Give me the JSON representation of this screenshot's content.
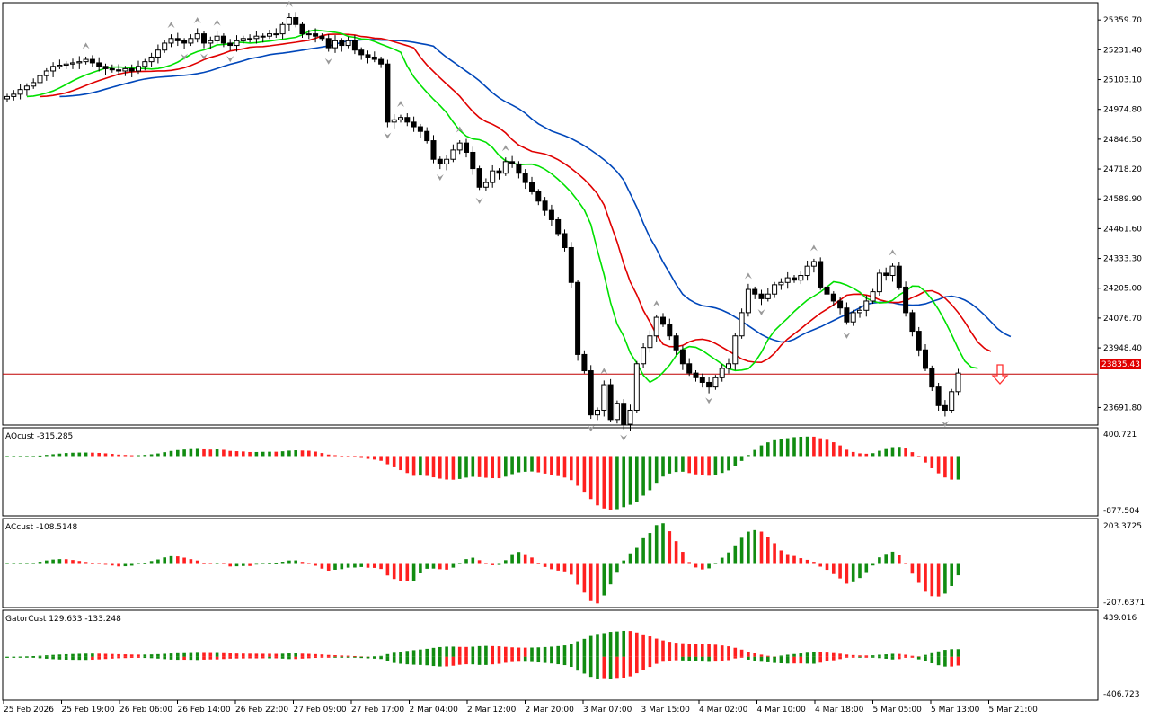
{
  "colors": {
    "background": "#ffffff",
    "grid_border": "#000000",
    "candle_bull": "#ffffff",
    "candle_bear": "#000000",
    "jaw": "#0047ba",
    "teeth": "#e00000",
    "lips": "#00e000",
    "hist_up": "#118c11",
    "hist_down": "#ff2020",
    "price_line": "#c00000",
    "price_tag_bg": "#e00000",
    "price_tag_text": "#ffffff",
    "fractal": "#999999",
    "signal_arrow": "#ff3030"
  },
  "signal": {
    "icon": "down-arrow-outline",
    "direction": "sell"
  },
  "chart_data": [
    {
      "type": "candlestick",
      "title": "",
      "current_price": "23835.43",
      "price_ticks": [
        "25359.70",
        "25231.40",
        "25103.10",
        "24974.80",
        "24846.50",
        "24718.20",
        "24589.90",
        "24461.60",
        "24333.30",
        "24205.00",
        "24076.70",
        "23948.40",
        "23691.80"
      ],
      "ylim": [
        23620,
        25430
      ],
      "x_labels": [
        "25 Feb 2026",
        "25 Feb 19:00",
        "26 Feb 06:00",
        "26 Feb 14:00",
        "26 Feb 22:00",
        "27 Feb 09:00",
        "27 Feb 17:00",
        "2 Mar 04:00",
        "2 Mar 12:00",
        "2 Mar 20:00",
        "3 Mar 07:00",
        "3 Mar 15:00",
        "4 Mar 02:00",
        "4 Mar 10:00",
        "4 Mar 18:00",
        "5 Mar 05:00",
        "5 Mar 13:00",
        "5 Mar 21:00"
      ],
      "close": [
        25030,
        25040,
        25060,
        25075,
        25090,
        25120,
        25140,
        25160,
        25165,
        25170,
        25175,
        25180,
        25190,
        25175,
        25160,
        25150,
        25145,
        25140,
        25150,
        25140,
        25160,
        25180,
        25200,
        25230,
        25260,
        25280,
        25270,
        25260,
        25280,
        25300,
        25260,
        25270,
        25290,
        25260,
        25250,
        25270,
        25280,
        25280,
        25290,
        25290,
        25300,
        25300,
        25340,
        25370,
        25340,
        25300,
        25300,
        25290,
        25280,
        25240,
        25270,
        25250,
        25270,
        25230,
        25210,
        25200,
        25190,
        25170,
        24920,
        24930,
        24940,
        24920,
        24900,
        24880,
        24840,
        24760,
        24740,
        24760,
        24800,
        24830,
        24790,
        24720,
        24640,
        24660,
        24710,
        24700,
        24750,
        24740,
        24700,
        24660,
        24620,
        24580,
        24540,
        24500,
        24440,
        24380,
        24230,
        23920,
        23850,
        23660,
        23680,
        23790,
        23640,
        23710,
        23620,
        23680,
        23880,
        23950,
        24000,
        24080,
        24050,
        24000,
        23940,
        23880,
        23840,
        23820,
        23800,
        23780,
        23820,
        23860,
        23880,
        24000,
        24100,
        24200,
        24180,
        24160,
        24180,
        24220,
        24230,
        24250,
        24240,
        24260,
        24300,
        24320,
        24210,
        24180,
        24150,
        24120,
        24060,
        24100,
        24110,
        24150,
        24190,
        24270,
        24260,
        24300,
        24210,
        24100,
        24020,
        23940,
        23860,
        23780,
        23700,
        23680,
        23760,
        23840
      ],
      "series": [
        {
          "name": "",
          "line": "jaw"
        },
        {
          "name": "",
          "line": "teeth"
        },
        {
          "name": "",
          "line": "lips"
        }
      ]
    },
    {
      "type": "histogram",
      "title": "AOcust -315.285",
      "ylim": [
        -877.504,
        400.721
      ],
      "tick_labels": [
        "400.721",
        "-877.504"
      ]
    },
    {
      "type": "histogram",
      "title": "ACcust -108.5148",
      "ylim": [
        -207.6371,
        203.3725
      ],
      "tick_labels": [
        "203.3725",
        "-207.6371"
      ]
    },
    {
      "type": "histogram",
      "title": "GatorCust 129.633 -133.248",
      "ylim": [
        -406.723,
        439.016
      ],
      "tick_labels": [
        "439.016",
        "-406.723"
      ]
    }
  ]
}
